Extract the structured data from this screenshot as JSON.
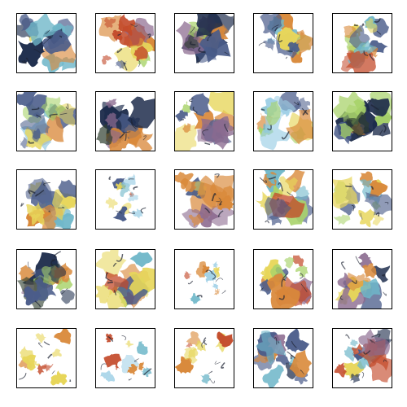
{
  "palette": {
    "background": "#ffffff",
    "border": "#000000",
    "blob_colors": [
      "#1b2a4a",
      "#4a5c8a",
      "#6fb7c9",
      "#a8d36a",
      "#e7d65a",
      "#d9893a",
      "#c34a2a",
      "#8b6a8f",
      "#2f3f2f",
      "#9fd0e6"
    ]
  },
  "tiles": [
    {
      "style": "mixed",
      "dark": 0.25
    },
    {
      "style": "warm",
      "dark": 0.15
    },
    {
      "style": "dark",
      "dark": 0.75
    },
    {
      "style": "cool",
      "dark": 0.15
    },
    {
      "style": "green",
      "dark": 0.2
    },
    {
      "style": "cool",
      "dark": 0.3
    },
    {
      "style": "dark",
      "dark": 0.55
    },
    {
      "style": "warm",
      "dark": 0.25
    },
    {
      "style": "cool",
      "dark": 0.15
    },
    {
      "style": "dark",
      "dark": 0.7
    },
    {
      "style": "cool",
      "dark": 0.2
    },
    {
      "style": "sparse",
      "dark": 0.05
    },
    {
      "style": "warm",
      "dark": 0.35
    },
    {
      "style": "green",
      "dark": 0.15
    },
    {
      "style": "green",
      "dark": 0.2
    },
    {
      "style": "dark",
      "dark": 0.6
    },
    {
      "style": "green",
      "dark": 0.2
    },
    {
      "style": "sparse",
      "dark": 0.05
    },
    {
      "style": "warm",
      "dark": 0.3
    },
    {
      "style": "mixed",
      "dark": 0.35
    },
    {
      "style": "sparse",
      "dark": 0.15
    },
    {
      "style": "sparse",
      "dark": 0.1
    },
    {
      "style": "sparse",
      "dark": 0.05
    },
    {
      "style": "mixed",
      "dark": 0.2
    },
    {
      "style": "mixed",
      "dark": 0.2
    }
  ]
}
